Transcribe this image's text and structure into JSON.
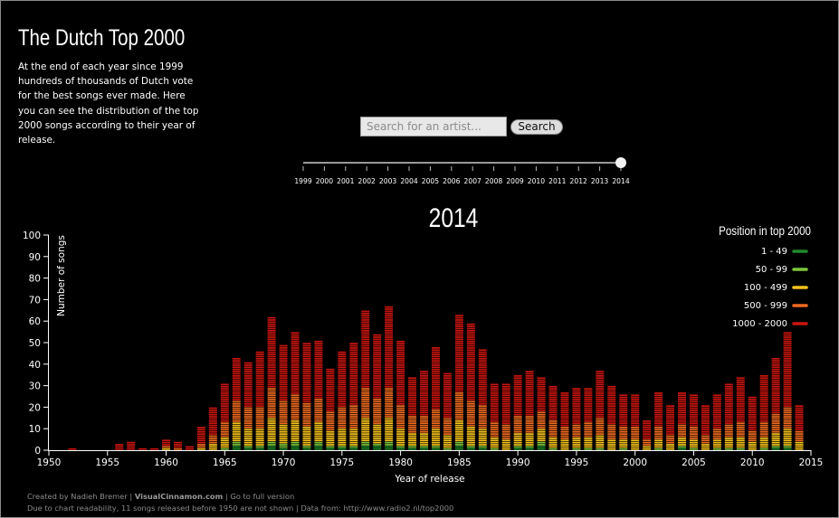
{
  "page": {
    "title": "The Dutch Top 2000",
    "intro": "At the end of each year since 1999 hundreds of thousands of Dutch vote for the best songs ever made. Here you can see the distribution of the top 2000 songs according to their year of release."
  },
  "search": {
    "placeholder": "Search for an artist...",
    "button_label": "Search"
  },
  "slider": {
    "years": [
      "1999",
      "2000",
      "2001",
      "2002",
      "2003",
      "2004",
      "2005",
      "2006",
      "2007",
      "2008",
      "2009",
      "2010",
      "2011",
      "2012",
      "2013",
      "2014"
    ],
    "selected": "2014"
  },
  "footer": {
    "line1_prefix": "Created by Nadieh Bremer | ",
    "site": "VisualCinnamon.com",
    "line1_suffix": " | Go to full version",
    "line2": "Due to chart readability, 11 songs released before 1950 are not shown | Data from: http://www.radio2.nl/top2000"
  },
  "colors": {
    "pos_1_49": "#1f8a2a",
    "pos_50_99": "#7ec63a",
    "pos_100_499": "#f5c21b",
    "pos_500_999": "#ef6a1f",
    "pos_1000_2000": "#c8150f"
  },
  "chart_data": {
    "type": "bar",
    "stacked": true,
    "title": "2014",
    "xlabel": "Year of release",
    "ylabel": "Number of songs",
    "xlim": [
      1950,
      2015
    ],
    "ylim": [
      0,
      100
    ],
    "xticks": [
      "1950",
      "1955",
      "1960",
      "1965",
      "1970",
      "1975",
      "1980",
      "1985",
      "1990",
      "1995",
      "2000",
      "2005",
      "2010",
      "2015"
    ],
    "yticks": [
      "0",
      "10",
      "20",
      "30",
      "40",
      "50",
      "60",
      "70",
      "80",
      "90",
      "100"
    ],
    "legend": {
      "title": "Position in top 2000",
      "placement": "top-right",
      "entries": [
        "1 - 49",
        "50 - 99",
        "100 - 499",
        "500 - 999",
        "1000 - 2000"
      ]
    },
    "x": [
      1952,
      1956,
      1957,
      1958,
      1959,
      1960,
      1961,
      1962,
      1963,
      1964,
      1965,
      1966,
      1967,
      1968,
      1969,
      1970,
      1971,
      1972,
      1973,
      1974,
      1975,
      1976,
      1977,
      1978,
      1979,
      1980,
      1981,
      1982,
      1983,
      1984,
      1985,
      1986,
      1987,
      1988,
      1989,
      1990,
      1991,
      1992,
      1993,
      1994,
      1995,
      1996,
      1997,
      1998,
      1999,
      2000,
      2001,
      2002,
      2003,
      2004,
      2005,
      2006,
      2007,
      2008,
      2009,
      2010,
      2011,
      2012,
      2013,
      2014
    ],
    "series": [
      {
        "name": "1 - 49",
        "values": [
          0,
          0,
          0,
          0,
          0,
          0,
          0,
          0,
          0,
          0,
          0,
          2,
          1,
          1,
          2,
          1,
          2,
          1,
          2,
          1,
          1,
          1,
          2,
          2,
          2,
          1,
          1,
          1,
          1,
          0,
          2,
          1,
          1,
          0,
          0,
          1,
          1,
          2,
          0,
          0,
          0,
          0,
          0,
          0,
          0,
          0,
          0,
          0,
          0,
          1,
          0,
          0,
          0,
          0,
          0,
          0,
          0,
          1,
          1,
          0
        ]
      },
      {
        "name": "50 - 99",
        "values": [
          0,
          0,
          0,
          0,
          0,
          0,
          0,
          0,
          0,
          0,
          1,
          2,
          1,
          1,
          2,
          2,
          2,
          1,
          2,
          1,
          1,
          1,
          2,
          1,
          2,
          1,
          1,
          1,
          1,
          1,
          2,
          1,
          1,
          1,
          0,
          1,
          1,
          2,
          1,
          0,
          1,
          1,
          1,
          0,
          1,
          0,
          0,
          1,
          0,
          1,
          1,
          0,
          1,
          1,
          1,
          0,
          1,
          1,
          1,
          0
        ]
      },
      {
        "name": "100 - 499",
        "values": [
          0,
          0,
          0,
          0,
          0,
          1,
          0,
          0,
          1,
          3,
          5,
          9,
          8,
          8,
          11,
          9,
          10,
          9,
          9,
          7,
          8,
          8,
          11,
          9,
          11,
          8,
          6,
          6,
          8,
          6,
          10,
          9,
          8,
          5,
          5,
          6,
          6,
          6,
          5,
          5,
          5,
          5,
          6,
          5,
          4,
          5,
          2,
          4,
          3,
          4,
          4,
          3,
          4,
          5,
          5,
          4,
          5,
          6,
          8,
          4
        ]
      },
      {
        "name": "500 - 999",
        "values": [
          0,
          0,
          0,
          0,
          0,
          1,
          1,
          0,
          2,
          4,
          7,
          10,
          10,
          10,
          14,
          11,
          12,
          11,
          11,
          9,
          10,
          11,
          14,
          12,
          14,
          11,
          8,
          8,
          9,
          8,
          13,
          12,
          11,
          7,
          7,
          8,
          8,
          8,
          8,
          6,
          6,
          7,
          8,
          7,
          6,
          6,
          3,
          6,
          4,
          6,
          6,
          4,
          5,
          6,
          7,
          5,
          7,
          9,
          10,
          5
        ]
      },
      {
        "name": "1000 - 2000",
        "values": [
          1,
          3,
          4,
          1,
          1,
          3,
          3,
          2,
          8,
          13,
          18,
          20,
          21,
          26,
          33,
          26,
          29,
          28,
          27,
          20,
          26,
          29,
          36,
          30,
          38,
          30,
          18,
          21,
          29,
          21,
          36,
          36,
          26,
          18,
          19,
          19,
          21,
          16,
          16,
          16,
          17,
          16,
          22,
          18,
          15,
          15,
          9,
          16,
          14,
          15,
          15,
          14,
          16,
          19,
          21,
          16,
          22,
          26,
          35,
          12
        ]
      }
    ]
  }
}
